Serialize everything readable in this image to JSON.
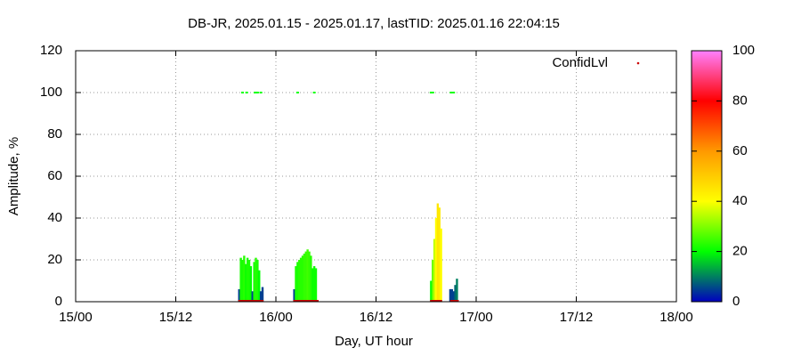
{
  "chart_data": {
    "type": "impulse",
    "title": "DB-JR, 2025.01.15 - 2025.01.17, lastTID: 2025.01.16 22:04:15",
    "xlabel": "Day, UT hour",
    "ylabel": "Amplitude, %",
    "xlim": [
      0,
      72
    ],
    "xticks": [
      {
        "value": 0,
        "label": "15/00"
      },
      {
        "value": 12,
        "label": "15/12"
      },
      {
        "value": 24,
        "label": "16/00"
      },
      {
        "value": 36,
        "label": "16/12"
      },
      {
        "value": 48,
        "label": "17/00"
      },
      {
        "value": 60,
        "label": "17/12"
      },
      {
        "value": 72,
        "label": "18/00"
      }
    ],
    "ylim": [
      0,
      120
    ],
    "yticks": [
      0,
      20,
      40,
      60,
      80,
      100,
      120
    ],
    "grid": true,
    "cblim": [
      0,
      100
    ],
    "cbticks": [
      0,
      20,
      40,
      60,
      80,
      100
    ],
    "colormap": [
      "#0000c0",
      "#00ff00",
      "#ffff00",
      "#ff9900",
      "#ff0000",
      "#ff80ff"
    ],
    "bars": {
      "x": [
        19.6,
        19.8,
        20.0,
        20.2,
        20.4,
        20.6,
        20.8,
        21.0,
        21.2,
        21.4,
        21.6,
        21.8,
        22.0,
        22.2,
        22.4,
        26.2,
        26.4,
        26.6,
        26.8,
        27.0,
        27.2,
        27.4,
        27.6,
        27.8,
        28.0,
        28.2,
        28.4,
        28.6,
        28.8,
        42.6,
        42.8,
        43.0,
        43.2,
        43.4,
        43.6,
        43.8,
        44.9,
        45.1,
        45.3,
        45.5,
        45.7
      ],
      "values": [
        6,
        21,
        20,
        22,
        18,
        21,
        20,
        17,
        5,
        19,
        21,
        20,
        15,
        5,
        7,
        6,
        17,
        19,
        20,
        21,
        22,
        23,
        24,
        25,
        24,
        22,
        16,
        17,
        16,
        10,
        20,
        30,
        40,
        47,
        45,
        35,
        6,
        6,
        5,
        8,
        11
      ],
      "confidence": [
        5,
        22,
        22,
        23,
        21,
        22,
        22,
        20,
        5,
        22,
        23,
        22,
        20,
        5,
        5,
        5,
        22,
        22,
        23,
        23,
        23,
        24,
        24,
        25,
        24,
        23,
        21,
        21,
        21,
        20,
        28,
        35,
        40,
        45,
        44,
        40,
        5,
        5,
        5,
        8,
        10
      ]
    },
    "top_points": {
      "color": "#00ff00",
      "x": [
        20.0,
        20.5,
        21.5,
        21.8,
        22.2,
        26.6,
        28.6,
        42.6,
        42.8,
        45.0,
        45.3
      ],
      "values": [
        100,
        100,
        100,
        100,
        100,
        100,
        100,
        100,
        100,
        100,
        100
      ]
    },
    "series": [
      {
        "name": "ConfidLvl",
        "color": "#cc0000",
        "x": [
          19.8,
          20.2,
          20.6,
          21.0,
          21.4,
          21.8,
          22.2,
          26.4,
          26.8,
          27.2,
          27.6,
          28.0,
          28.4,
          28.8,
          42.8,
          43.2,
          43.6,
          45.2,
          45.6
        ],
        "values": [
          0,
          0,
          0,
          0,
          0,
          0,
          0,
          0,
          0,
          0,
          0,
          0,
          0,
          0,
          0,
          0,
          0,
          0,
          0
        ]
      }
    ]
  }
}
